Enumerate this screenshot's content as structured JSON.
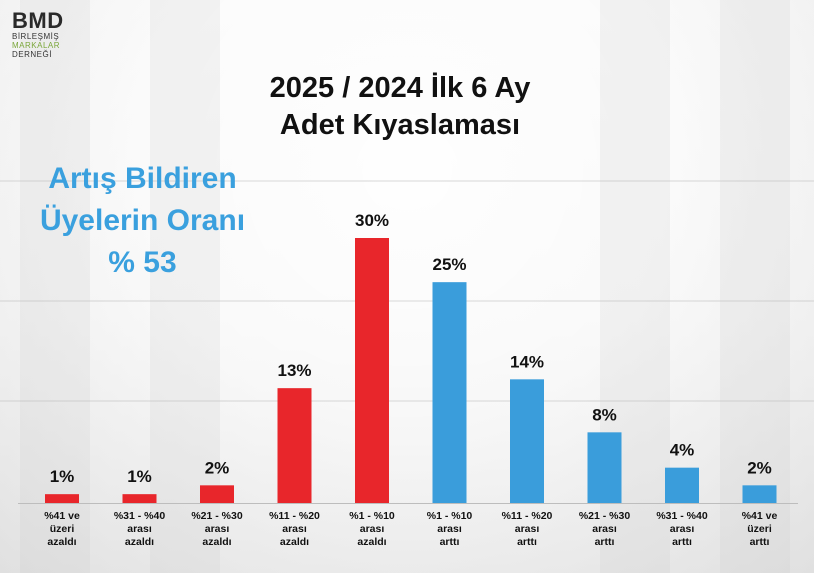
{
  "logo": {
    "mark": "BMD",
    "line1": "BİRLEŞMİŞ",
    "line2": "MARKALAR",
    "line3": "DERNEĞİ"
  },
  "title": {
    "line1": "2025 / 2024 İlk 6 Ay",
    "line2": "Adet Kıyaslaması"
  },
  "side_note": {
    "line1": "Artış Bildiren",
    "line2": "Üyelerin Oranı",
    "line3": "% 53"
  },
  "colors": {
    "decrease": "#e8262b",
    "increase": "#3a9ddb",
    "side_note": "#3aa0de"
  },
  "chart_data": {
    "type": "bar",
    "title": "",
    "xlabel": "",
    "ylabel": "",
    "ylim": [
      0,
      30
    ],
    "grid": false,
    "categories": [
      [
        "%41 ve",
        "üzeri",
        "azaldı"
      ],
      [
        "%31 - %40",
        "arası",
        "azaldı"
      ],
      [
        "%21 - %30",
        "arası",
        "azaldı"
      ],
      [
        "%11 - %20",
        "arası",
        "azaldı"
      ],
      [
        "%1 - %10",
        "arası",
        "azaldı"
      ],
      [
        "%1 - %10",
        "arası",
        "arttı"
      ],
      [
        "%11 - %20",
        "arası",
        "arttı"
      ],
      [
        "%21 - %30",
        "arası",
        "arttı"
      ],
      [
        "%31 - %40",
        "arası",
        "arttı"
      ],
      [
        "%41 ve",
        "üzeri",
        "arttı"
      ]
    ],
    "values": [
      1,
      1,
      2,
      13,
      30,
      25,
      14,
      8,
      4,
      2
    ],
    "value_labels": [
      "1%",
      "1%",
      "2%",
      "13%",
      "30%",
      "25%",
      "14%",
      "8%",
      "4%",
      "2%"
    ],
    "bar_groups": [
      "decrease",
      "decrease",
      "decrease",
      "decrease",
      "decrease",
      "increase",
      "increase",
      "increase",
      "increase",
      "increase"
    ]
  }
}
